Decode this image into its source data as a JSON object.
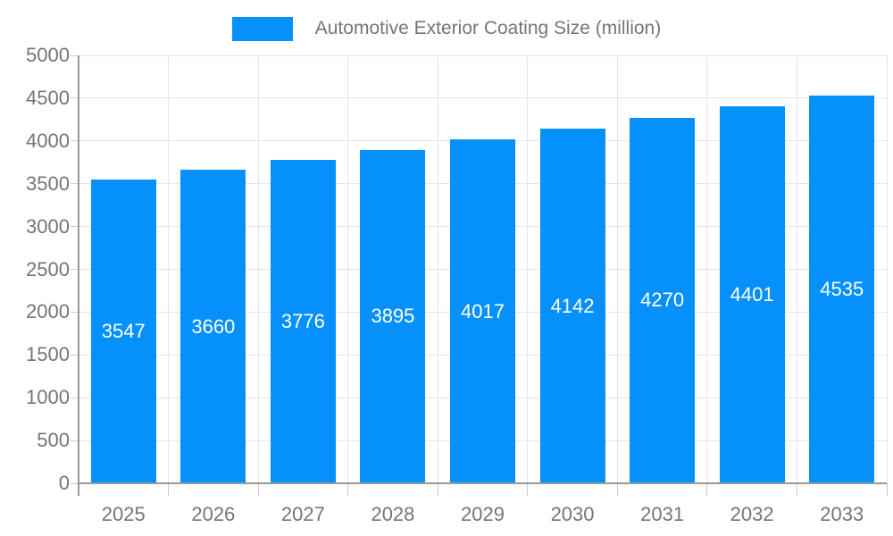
{
  "chart_data": {
    "type": "bar",
    "title": "Automotive Exterior Coating Size (million)",
    "legend": {
      "label": "Automotive Exterior Coating Size (million)",
      "position": "top",
      "swatch_color": "#0590FA"
    },
    "categories": [
      "2025",
      "2026",
      "2027",
      "2028",
      "2029",
      "2030",
      "2031",
      "2032",
      "2033"
    ],
    "values": [
      3547,
      3660,
      3776,
      3895,
      4017,
      4142,
      4270,
      4401,
      4535
    ],
    "xlabel": "",
    "ylabel": "",
    "ylim": [
      0,
      5000
    ],
    "ytick_step": 500,
    "yticks": [
      0,
      500,
      1000,
      1500,
      2000,
      2500,
      3000,
      3500,
      4000,
      4500,
      5000
    ],
    "grid": true,
    "bar_color": "#0590FA",
    "bar_label_color": "#FFFFFF",
    "colors": {
      "axis_text": "#757575",
      "grid_line": "#E6E6E6",
      "axis_line": "#999999",
      "tick": "#CCCCCC",
      "background": "#FFFFFF"
    }
  }
}
